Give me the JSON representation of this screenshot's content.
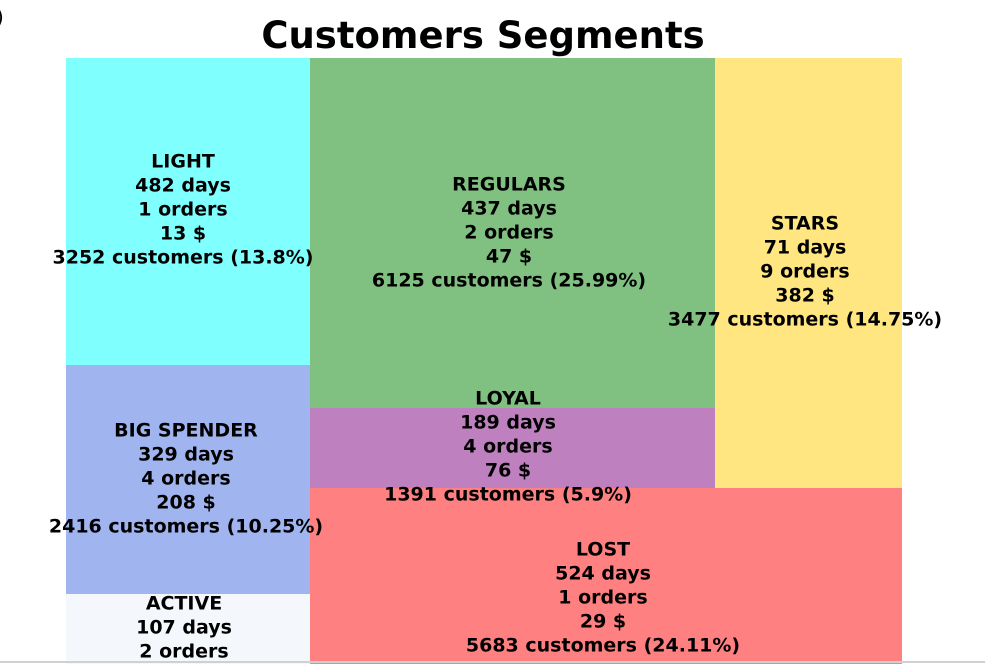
{
  "chart_data": {
    "type": "treemap",
    "title": "Customers Segments",
    "segments": [
      {
        "name": "LIGHT",
        "days": "482 days",
        "orders": "1 orders",
        "amount": "13 $",
        "customers": "3252 customers (13.8%)",
        "value": 3252,
        "color": "#80ffff"
      },
      {
        "name": "BIG SPENDER",
        "days": "329 days",
        "orders": "4 orders",
        "amount": "208 $",
        "customers": "2416 customers (10.25%)",
        "value": 2416,
        "color": "#a0b4f0"
      },
      {
        "name": "ACTIVE",
        "days": "107 days",
        "orders": "2 orders",
        "amount": "",
        "customers": "",
        "value": null,
        "color": "#f4f8fc"
      },
      {
        "name": "REGULARS",
        "days": "437 days",
        "orders": "2 orders",
        "amount": "47 $",
        "customers": "6125 customers (25.99%)",
        "value": 6125,
        "color": "#80c080"
      },
      {
        "name": "LOYAL",
        "days": "189 days",
        "orders": "4 orders",
        "amount": "76 $",
        "customers": "1391 customers (5.9%)",
        "value": 1391,
        "color": "#bf80bf"
      },
      {
        "name": "STARS",
        "days": "71 days",
        "orders": "9 orders",
        "amount": "382 $",
        "customers": "3477 customers (14.75%)",
        "value": 3477,
        "color": "#ffe680"
      },
      {
        "name": "LOST",
        "days": "524 days",
        "orders": "1 orders",
        "amount": "29 $",
        "customers": "5683 customers (24.11%)",
        "value": 5683,
        "color": "#ff8080"
      }
    ],
    "edge_glyph": ")"
  }
}
